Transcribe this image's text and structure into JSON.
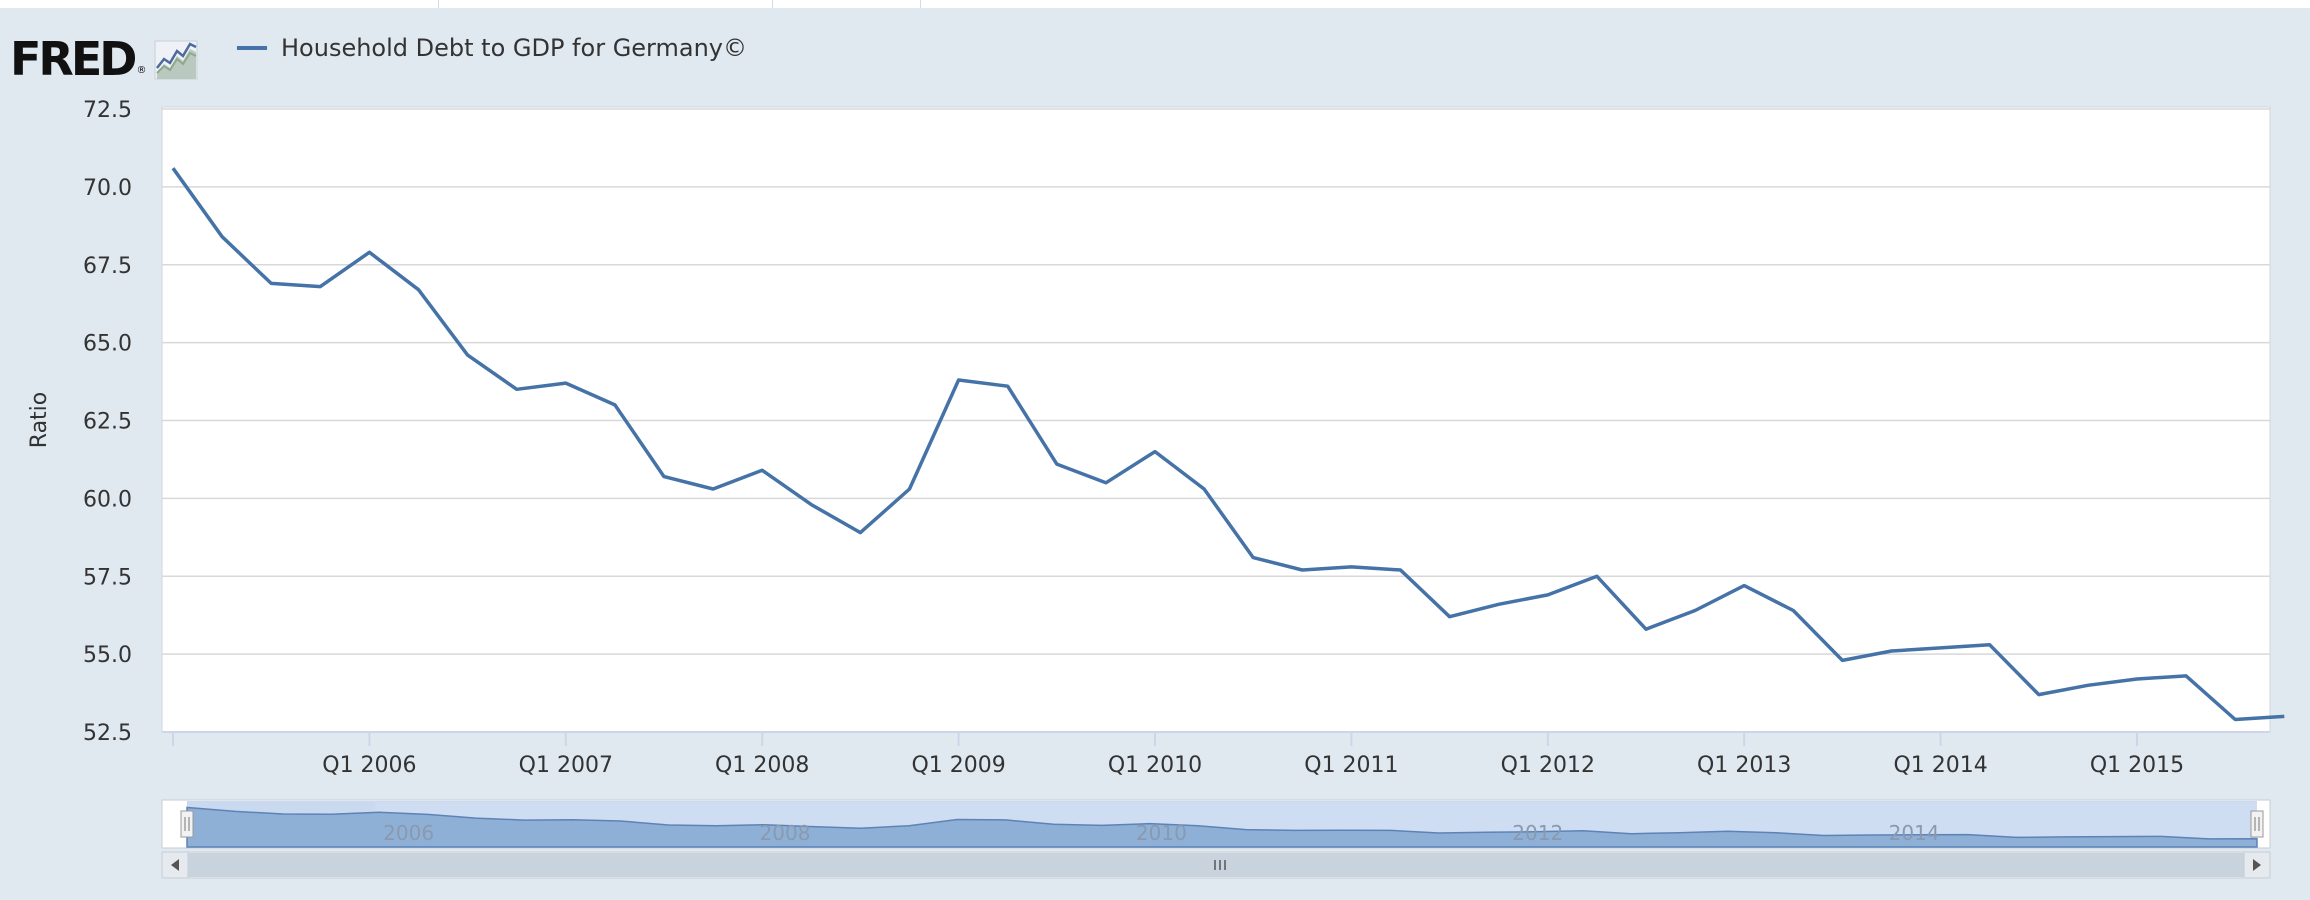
{
  "header": {
    "logo_text": "FRED",
    "logo_reg": "®",
    "logo_icon": "line-chart-icon",
    "legend_label": "Household Debt to GDP for Germany©"
  },
  "colors": {
    "background": "#e1e9f0",
    "plot_background": "#ffffff",
    "series": "#4572a7",
    "gridline": "#d8d8d8",
    "navigator_fill": "#c5d7ef",
    "navigator_series": "#8fb0d6",
    "scrollbar": "#c9d3de"
  },
  "chart_data": {
    "type": "line",
    "title": "",
    "xlabel": "",
    "ylabel": "Ratio",
    "ylim": [
      52.5,
      72.5
    ],
    "yticks": [
      "52.5",
      "55.0",
      "57.5",
      "60.0",
      "62.5",
      "65.0",
      "67.5",
      "70.0",
      "72.5"
    ],
    "xticks": [
      "Q1 2006",
      "Q1 2007",
      "Q1 2008",
      "Q1 2009",
      "Q1 2010",
      "Q1 2011",
      "Q1 2012",
      "Q1 2013",
      "Q1 2014",
      "Q1 2015"
    ],
    "x_start": "Q1 2005",
    "x_end": "Q4 2015",
    "grid": true,
    "legend": "top-left",
    "series": [
      {
        "name": "Household Debt to GDP for Germany©",
        "x": [
          "Q1 2005",
          "Q2 2005",
          "Q3 2005",
          "Q4 2005",
          "Q1 2006",
          "Q2 2006",
          "Q3 2006",
          "Q4 2006",
          "Q1 2007",
          "Q2 2007",
          "Q3 2007",
          "Q4 2007",
          "Q1 2008",
          "Q2 2008",
          "Q3 2008",
          "Q4 2008",
          "Q1 2009",
          "Q2 2009",
          "Q3 2009",
          "Q4 2009",
          "Q1 2010",
          "Q2 2010",
          "Q3 2010",
          "Q4 2010",
          "Q1 2011",
          "Q2 2011",
          "Q3 2011",
          "Q4 2011",
          "Q1 2012",
          "Q2 2012",
          "Q3 2012",
          "Q4 2012",
          "Q1 2013",
          "Q2 2013",
          "Q3 2013",
          "Q4 2013",
          "Q1 2014",
          "Q2 2014",
          "Q3 2014",
          "Q4 2014",
          "Q1 2015",
          "Q2 2015",
          "Q3 2015",
          "Q4 2015"
        ],
        "values": [
          70.6,
          68.4,
          66.9,
          66.8,
          67.9,
          66.7,
          64.6,
          63.5,
          63.7,
          63.0,
          60.7,
          60.3,
          60.9,
          59.8,
          58.9,
          60.3,
          63.8,
          63.6,
          61.1,
          60.5,
          61.5,
          60.3,
          58.1,
          57.7,
          57.8,
          57.7,
          56.2,
          56.6,
          56.9,
          57.5,
          55.8,
          56.4,
          57.2,
          56.4,
          54.8,
          55.1,
          55.2,
          55.3,
          53.7,
          54.0,
          54.2,
          54.3,
          52.9,
          53.0
        ]
      }
    ],
    "navigator": {
      "labels": [
        "2006",
        "2008",
        "2010",
        "2012",
        "2014"
      ]
    }
  }
}
